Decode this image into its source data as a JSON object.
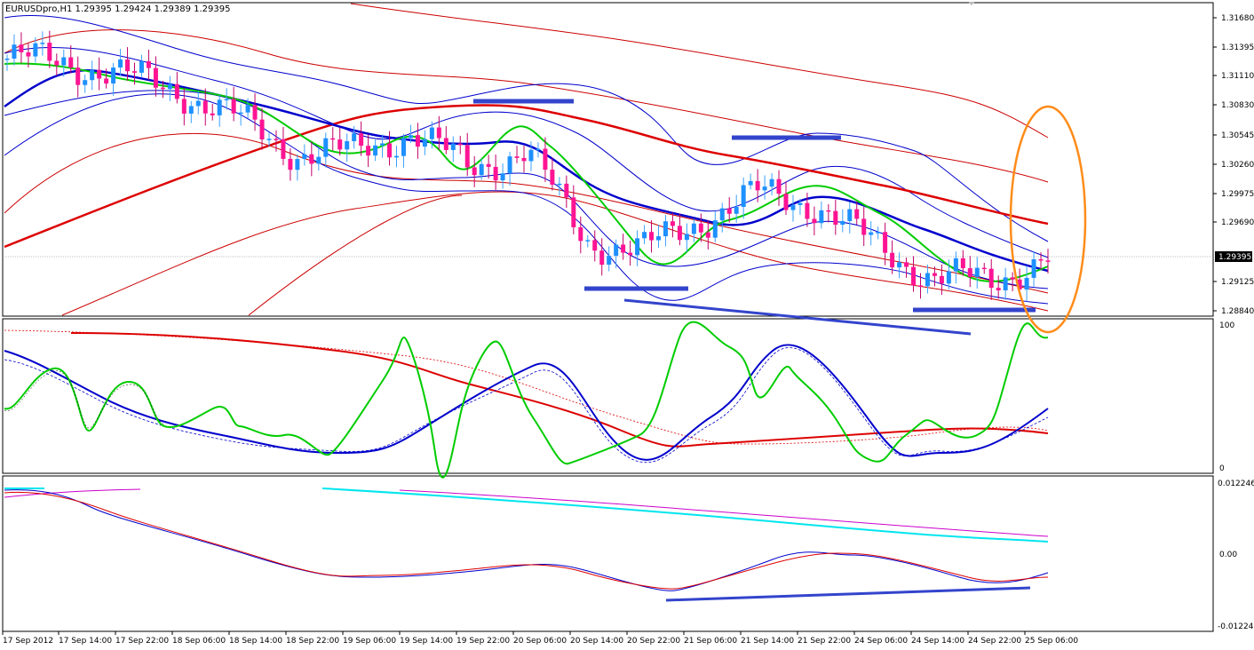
{
  "window": {
    "symbol_header": "EURUSDpro,H1  1.29395 1.29424 1.29389 1.29395"
  },
  "price_axis": {
    "labels": [
      "1.31680",
      "1.31395",
      "1.31110",
      "1.30830",
      "1.30545",
      "1.30260",
      "1.29975",
      "1.29690",
      "1.29125",
      "1.28840"
    ],
    "current_price": "1.29395"
  },
  "stoch_axis": {
    "top": "100",
    "bottom": "0"
  },
  "macd_axis": {
    "labels": [
      "0.012246",
      "0.00",
      "-0.01224"
    ]
  },
  "time_axis": {
    "labels": [
      "17 Sep 2012",
      "17 Sep 14:00",
      "17 Sep 22:00",
      "18 Sep 06:00",
      "18 Sep 14:00",
      "18 Sep 22:00",
      "19 Sep 06:00",
      "19 Sep 14:00",
      "19 Sep 22:00",
      "20 Sep 06:00",
      "20 Sep 14:00",
      "20 Sep 22:00",
      "21 Sep 06:00",
      "21 Sep 14:00",
      "21 Sep 22:00",
      "24 Sep 06:00",
      "24 Sep 14:00",
      "24 Sep 22:00",
      "25 Sep 06:00"
    ]
  },
  "colors": {
    "bull_candle": "#1e90ff",
    "bear_candle": "#ff1493",
    "ma_fast": "#00cc00",
    "ma_mid": "#0000cc",
    "ma_slow": "#dd0000",
    "band_blue": "#0000cc",
    "band_red": "#cc0000",
    "annotation_line": "#3344cc",
    "annotation_ellipse": "#ff8c1a",
    "macd_signal_cyan": "#00e5ee",
    "macd_signal_magenta": "#cc00cc"
  },
  "chart_data": {
    "type": "line",
    "title": "EURUSDpro,H1",
    "ylim": [
      1.2884,
      1.3168
    ],
    "x": [
      "17 Sep 2012",
      "17 Sep 14:00",
      "17 Sep 22:00",
      "18 Sep 06:00",
      "18 Sep 14:00",
      "18 Sep 22:00",
      "19 Sep 06:00",
      "19 Sep 14:00",
      "19 Sep 22:00",
      "20 Sep 06:00",
      "20 Sep 14:00",
      "20 Sep 22:00",
      "21 Sep 06:00",
      "21 Sep 14:00",
      "21 Sep 22:00",
      "24 Sep 06:00",
      "24 Sep 14:00",
      "24 Sep 22:00",
      "25 Sep 06:00"
    ],
    "series": [
      {
        "name": "close",
        "values": [
          1.3131,
          1.3128,
          1.3115,
          1.31,
          1.3072,
          1.304,
          1.304,
          1.306,
          1.3025,
          1.3042,
          1.2955,
          1.2945,
          1.2975,
          1.3,
          1.299,
          1.295,
          1.292,
          1.2915,
          1.2939
        ]
      }
    ]
  }
}
